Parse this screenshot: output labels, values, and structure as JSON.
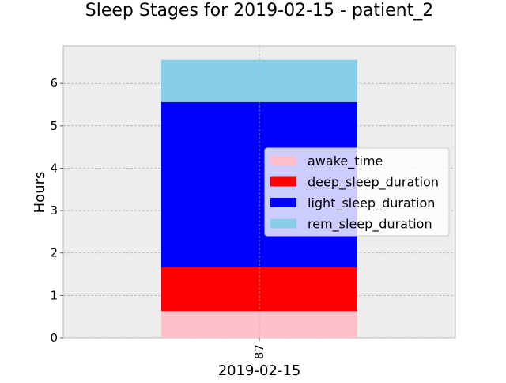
{
  "chart_data": {
    "type": "bar",
    "title": "Sleep Stages for 2019-02-15 - patient_2",
    "xlabel": "2019-02-15",
    "ylabel": "Hours",
    "categories": [
      "87"
    ],
    "ylim": [
      0,
      6.88
    ],
    "yticks": [
      0,
      1,
      2,
      3,
      4,
      5,
      6
    ],
    "grid": true,
    "stacked": true,
    "legend_position": "center-right",
    "series": [
      {
        "name": "awake_time",
        "values": [
          0.63
        ],
        "color": "#ffc0cb"
      },
      {
        "name": "deep_sleep_duration",
        "values": [
          1.03
        ],
        "color": "#ff0000"
      },
      {
        "name": "light_sleep_duration",
        "values": [
          3.9
        ],
        "color": "#0000ff"
      },
      {
        "name": "rem_sleep_duration",
        "values": [
          0.99
        ],
        "color": "#87ceeb"
      }
    ]
  }
}
